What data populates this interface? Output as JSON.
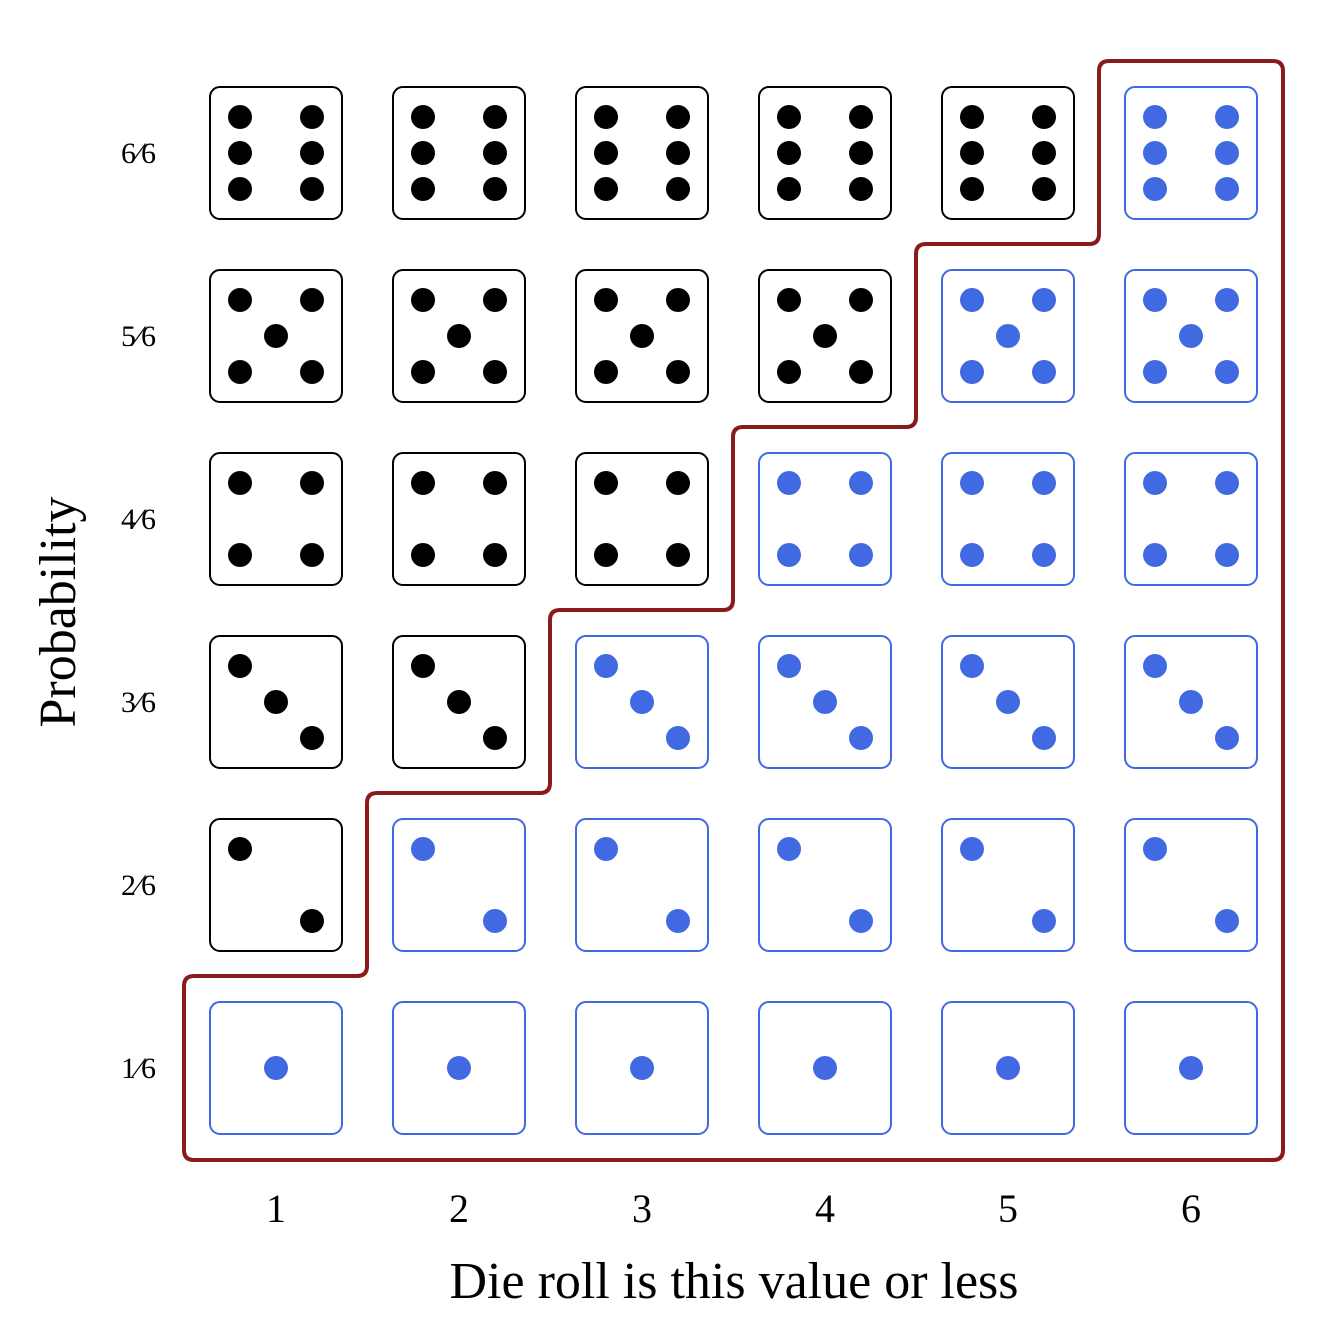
{
  "title": "",
  "x_axis": {
    "label": "Die roll is this value or less",
    "ticks": [
      "1",
      "2",
      "3",
      "4",
      "5",
      "6"
    ]
  },
  "y_axis": {
    "label": "Probability",
    "ticks": [
      "1⁄6",
      "2⁄6",
      "3⁄6",
      "4⁄6",
      "5⁄6",
      "6⁄6"
    ]
  },
  "grid": {
    "columns": [
      1,
      2,
      3,
      4,
      5,
      6
    ],
    "rows": [
      1,
      2,
      3,
      4,
      5,
      6
    ],
    "face_rule": "die face shown equals row number; highlighted when row <= column"
  },
  "colors": {
    "highlight": "#4169e1",
    "normal": "#000000",
    "boundary": "#8b1a1a",
    "background": "#ffffff"
  }
}
